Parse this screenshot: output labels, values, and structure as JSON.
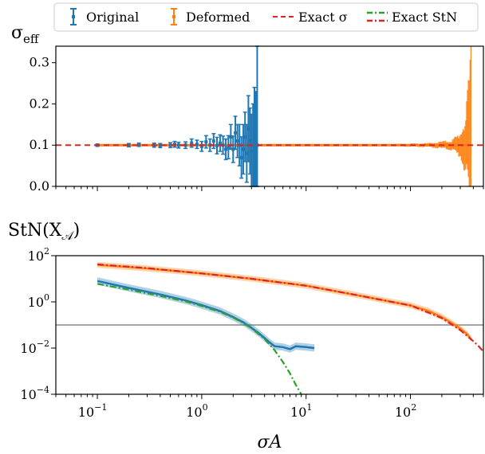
{
  "colors": {
    "original": "#1f77b4",
    "deformed": "#ff7f0e",
    "exact_sigma": "#d62728",
    "exact_stn_a": "#2ca02c",
    "exact_stn_b": "#d62728",
    "threshold": "#999999"
  },
  "legend": {
    "original": "Original",
    "deformed": "Deformed",
    "exact_sigma": "Exact σ",
    "exact_stn": "Exact StN"
  },
  "top": {
    "ylabel": "σ",
    "ylabel_sub": "eff",
    "yticks": [
      "0.0",
      "0.1",
      "0.2",
      "0.3"
    ]
  },
  "bottom": {
    "ylabel_pre": "StN(X",
    "ylabel_sub": "𝒜",
    "ylabel_post": ")",
    "ytick_bases": [
      "10",
      "10",
      "10",
      "10"
    ],
    "ytick_exps": [
      "2",
      "0",
      "−2",
      "−4"
    ],
    "xtick_bases": [
      "10",
      "10",
      "10",
      "10"
    ],
    "xtick_exps": [
      "−1",
      "0",
      "1",
      "2"
    ],
    "xlabel": "σA"
  },
  "chart_data": [
    {
      "type": "scatter",
      "x_scale": "log",
      "xlim": [
        0.04,
        500
      ],
      "ylim": [
        0.0,
        0.34
      ],
      "ylabel": "σ_eff",
      "hline": {
        "name": "Exact σ",
        "y": 0.1
      },
      "series": [
        {
          "name": "Original",
          "x": [
            0.1,
            0.2,
            0.25,
            0.35,
            0.4,
            0.5,
            0.55,
            0.6,
            0.7,
            0.8,
            0.9,
            1.0,
            1.1,
            1.2,
            1.3,
            1.4,
            1.5,
            1.6,
            1.7,
            1.8,
            1.9,
            2.0,
            2.1,
            2.2,
            2.3,
            2.4,
            2.5,
            2.6,
            2.7,
            2.8,
            2.9,
            3.0,
            3.1,
            3.2,
            3.3,
            3.4
          ],
          "y": [
            0.1,
            0.1,
            0.101,
            0.1,
            0.099,
            0.1,
            0.102,
            0.1,
            0.1,
            0.105,
            0.102,
            0.097,
            0.108,
            0.1,
            0.11,
            0.099,
            0.105,
            0.1,
            0.09,
            0.095,
            0.12,
            0.09,
            0.13,
            0.11,
            0.1,
            0.07,
            0.09,
            0.12,
            0.08,
            0.14,
            0.11,
            0.085,
            0.1,
            0.12,
            0.09,
            0.1
          ],
          "err": [
            0.003,
            0.004,
            0.004,
            0.005,
            0.005,
            0.006,
            0.007,
            0.007,
            0.008,
            0.01,
            0.01,
            0.012,
            0.015,
            0.015,
            0.018,
            0.02,
            0.02,
            0.022,
            0.025,
            0.028,
            0.03,
            0.032,
            0.04,
            0.04,
            0.05,
            0.05,
            0.06,
            0.06,
            0.07,
            0.08,
            0.08,
            0.09,
            0.1,
            0.12,
            0.14,
            0.25
          ]
        },
        {
          "name": "Deformed",
          "x_range": [
            0.1,
            380
          ],
          "y": 0.1,
          "err_trend": {
            "x": [
              0.1,
              50,
              150,
              250,
              300,
              340,
              370,
              380
            ],
            "err": [
              0.0005,
              0.0015,
              0.004,
              0.01,
              0.025,
              0.06,
              0.15,
              0.3
            ]
          }
        }
      ]
    },
    {
      "type": "line",
      "x_scale": "log",
      "y_scale": "log",
      "xlim": [
        0.04,
        500
      ],
      "ylim": [
        0.0001,
        100
      ],
      "xlabel": "σA",
      "ylabel": "StN(X_𝒜)",
      "hline": {
        "y": 0.1
      },
      "series": [
        {
          "name": "Original",
          "x": [
            0.1,
            0.2,
            0.4,
            0.7,
            1.0,
            1.5,
            2.0,
            2.5,
            3.0,
            3.5,
            4.0,
            4.5,
            5.0,
            6.0,
            7.0,
            8.0,
            10.0,
            12.0
          ],
          "y": [
            8.0,
            4.0,
            2.1,
            1.15,
            0.72,
            0.4,
            0.22,
            0.13,
            0.075,
            0.045,
            0.027,
            0.017,
            0.012,
            0.011,
            0.009,
            0.012,
            0.011,
            0.01
          ]
        },
        {
          "name": "Deformed",
          "x": [
            0.1,
            0.3,
            1.0,
            3.0,
            10.0,
            30.0,
            100.0,
            150.0,
            200.0,
            250.0,
            300.0,
            350.0,
            380.0
          ],
          "y": [
            40.0,
            28.0,
            17.0,
            10.0,
            5.0,
            2.0,
            0.7,
            0.4,
            0.22,
            0.12,
            0.07,
            0.04,
            0.025
          ]
        },
        {
          "name": "Exact StN",
          "x": [
            0.1,
            0.2,
            0.4,
            0.7,
            1.0,
            1.5,
            2.0,
            2.5,
            3.0,
            4.0,
            5.0,
            6.0,
            7.0,
            8.0,
            9.0
          ],
          "y": [
            6.0,
            3.4,
            1.8,
            1.05,
            0.66,
            0.37,
            0.21,
            0.12,
            0.072,
            0.025,
            0.008,
            0.0025,
            0.0008,
            0.00025,
            0.0001
          ]
        },
        {
          "name": "Exact StN (deformed)",
          "x": [
            0.1,
            0.3,
            1.0,
            3.0,
            10.0,
            30.0,
            100.0,
            200.0,
            300.0,
            400.0,
            450.0,
            500.0
          ],
          "y": [
            42.0,
            29.0,
            17.0,
            10.0,
            5.0,
            2.0,
            0.7,
            0.2,
            0.06,
            0.02,
            0.012,
            0.007
          ]
        }
      ]
    }
  ]
}
